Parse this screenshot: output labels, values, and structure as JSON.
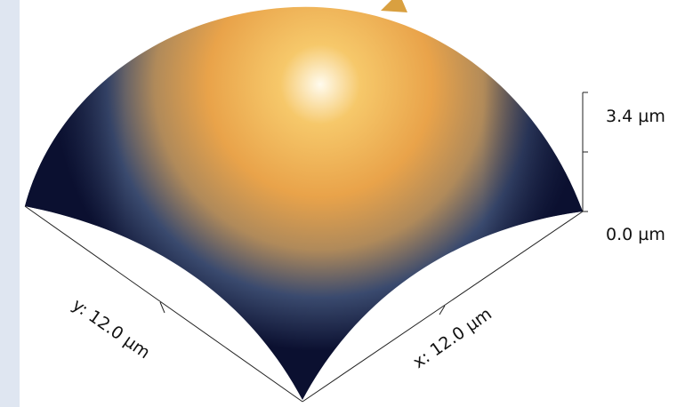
{
  "chart_data": {
    "type": "surface",
    "description_text": "",
    "x_axis": {
      "label": "x: 12.0 µm",
      "range": [
        0,
        12.0
      ],
      "unit": "µm"
    },
    "y_axis": {
      "label": "y: 12.0 µm",
      "range": [
        0,
        12.0
      ],
      "unit": "µm"
    },
    "z_axis": {
      "range": [
        0.0,
        3.4
      ],
      "unit": "µm",
      "tick_labels": [
        "3.4 µm",
        "0.0 µm"
      ]
    },
    "colormap": [
      "#0b1030",
      "#3a4a6e",
      "#b08a5a",
      "#e9a34a",
      "#f6c86a",
      "#fffbee"
    ],
    "peak_height": 3.4
  }
}
